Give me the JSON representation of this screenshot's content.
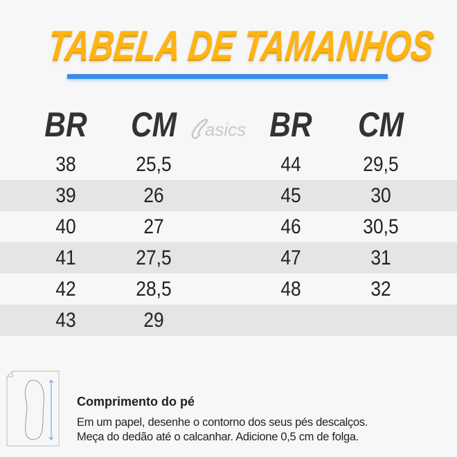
{
  "title": "TABELA DE TAMANHOS",
  "brand": "asics",
  "accent_color": "#fdb414",
  "underline_color": "#3a8ee8",
  "headers": [
    "BR",
    "CM",
    "BR",
    "CM"
  ],
  "left_rows": [
    [
      "38",
      "25,5"
    ],
    [
      "39",
      "26"
    ],
    [
      "40",
      "27"
    ],
    [
      "41",
      "27,5"
    ],
    [
      "42",
      "28,5"
    ],
    [
      "43",
      "29"
    ]
  ],
  "right_rows": [
    [
      "44",
      "29,5"
    ],
    [
      "45",
      "30"
    ],
    [
      "46",
      "30,5"
    ],
    [
      "47",
      "31"
    ],
    [
      "48",
      "32"
    ]
  ],
  "footer": {
    "icon": "foot-measure-icon",
    "title": "Comprimento do pé",
    "lines": [
      "Em um papel, desenhe o contorno dos seus pés descalços.",
      "Meça do dedão até o calcanhar. Adicione 0,5 cm de folga."
    ]
  }
}
